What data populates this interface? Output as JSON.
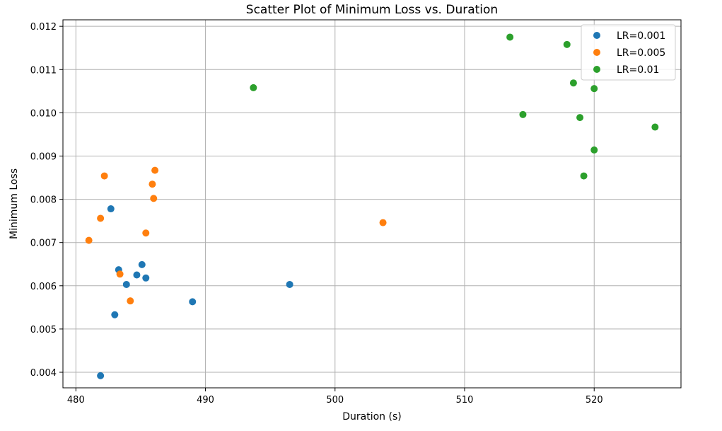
{
  "chart_data": {
    "type": "scatter",
    "title": "Scatter Plot of Minimum Loss vs. Duration",
    "xlabel": "Duration (s)",
    "ylabel": "Minimum Loss",
    "xlim": [
      479,
      526.7
    ],
    "ylim": [
      0.00364,
      0.01215
    ],
    "xticks": [
      480,
      490,
      500,
      510,
      520
    ],
    "xtick_labels": [
      "480",
      "490",
      "500",
      "510",
      "520"
    ],
    "yticks": [
      0.004,
      0.005,
      0.006,
      0.007,
      0.008,
      0.009,
      0.01,
      0.011,
      0.012
    ],
    "ytick_labels": [
      "0.004",
      "0.005",
      "0.006",
      "0.007",
      "0.008",
      "0.009",
      "0.010",
      "0.011",
      "0.012"
    ],
    "grid": true,
    "legend_position": "top-right",
    "series": [
      {
        "name": "LR=0.001",
        "color": "#1f77b4",
        "points": [
          [
            482.7,
            0.00778
          ],
          [
            483.3,
            0.00637
          ],
          [
            485.1,
            0.00649
          ],
          [
            484.7,
            0.00625
          ],
          [
            485.4,
            0.00618
          ],
          [
            483.9,
            0.00603
          ],
          [
            483.0,
            0.00533
          ],
          [
            489.0,
            0.00563
          ],
          [
            496.5,
            0.00603
          ],
          [
            481.9,
            0.00392
          ]
        ]
      },
      {
        "name": "LR=0.005",
        "color": "#ff7f0e",
        "points": [
          [
            482.2,
            0.00854
          ],
          [
            486.1,
            0.00867
          ],
          [
            485.9,
            0.00835
          ],
          [
            486.0,
            0.00802
          ],
          [
            481.9,
            0.00756
          ],
          [
            481.0,
            0.00705
          ],
          [
            485.4,
            0.00722
          ],
          [
            483.4,
            0.00627
          ],
          [
            484.2,
            0.00565
          ],
          [
            503.7,
            0.00746
          ]
        ]
      },
      {
        "name": "LR=0.01",
        "color": "#2ca02c",
        "points": [
          [
            493.7,
            0.01058
          ],
          [
            513.5,
            0.01175
          ],
          [
            517.9,
            0.01158
          ],
          [
            518.4,
            0.01069
          ],
          [
            520.0,
            0.01056
          ],
          [
            514.5,
            0.00996
          ],
          [
            518.9,
            0.00989
          ],
          [
            524.7,
            0.00967
          ],
          [
            520.0,
            0.00914
          ],
          [
            519.2,
            0.00854
          ]
        ]
      }
    ]
  }
}
